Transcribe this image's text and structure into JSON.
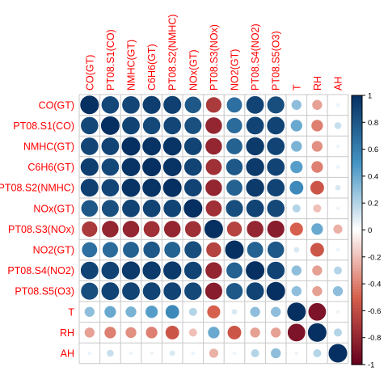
{
  "chart_data": {
    "type": "heatmap",
    "title": "",
    "variables": [
      "CO(GT)",
      "PT08.S1(CO)",
      "NMHC(GT)",
      "C6H6(GT)",
      "PT08.S2(NMHC)",
      "NOx(GT)",
      "PT08.S3(NOx)",
      "NO2(GT)",
      "PT08.S4(NO2)",
      "PT08.S5(O3)",
      "T",
      "RH",
      "AH"
    ],
    "matrix": [
      [
        1.0,
        0.88,
        0.89,
        0.93,
        0.92,
        0.8,
        -0.7,
        0.68,
        0.9,
        0.85,
        0.3,
        -0.3,
        0.05
      ],
      [
        0.88,
        1.0,
        0.9,
        0.88,
        0.89,
        0.84,
        -0.8,
        0.7,
        0.9,
        0.9,
        0.4,
        -0.4,
        0.15
      ],
      [
        0.89,
        0.9,
        1.0,
        0.98,
        0.98,
        0.9,
        -0.8,
        0.75,
        0.95,
        0.9,
        0.35,
        -0.35,
        0.05
      ],
      [
        0.93,
        0.88,
        0.98,
        1.0,
        0.98,
        0.9,
        -0.75,
        0.8,
        0.95,
        0.9,
        0.45,
        -0.4,
        0.05
      ],
      [
        0.92,
        0.89,
        0.98,
        0.98,
        1.0,
        0.9,
        -0.8,
        0.75,
        0.95,
        0.9,
        0.55,
        -0.55,
        0.1
      ],
      [
        0.8,
        0.84,
        0.9,
        0.9,
        0.9,
        1.0,
        -0.75,
        0.85,
        0.9,
        0.88,
        0.2,
        -0.2,
        0.05
      ],
      [
        -0.7,
        -0.8,
        -0.8,
        -0.75,
        -0.8,
        -0.75,
        1.0,
        -0.65,
        -0.8,
        -0.85,
        -0.5,
        0.4,
        -0.25
      ],
      [
        0.68,
        0.7,
        0.75,
        0.8,
        0.75,
        0.85,
        -0.65,
        1.0,
        0.75,
        0.8,
        0.1,
        -0.55,
        0.05
      ],
      [
        0.9,
        0.9,
        0.95,
        0.95,
        0.95,
        0.9,
        -0.8,
        0.75,
        1.0,
        0.9,
        0.3,
        -0.3,
        0.2
      ],
      [
        0.85,
        0.9,
        0.9,
        0.9,
        0.9,
        0.88,
        -0.85,
        0.8,
        0.9,
        1.0,
        0.3,
        -0.3,
        0.3
      ],
      [
        0.3,
        0.4,
        0.35,
        0.45,
        0.55,
        0.2,
        -0.5,
        0.1,
        0.3,
        0.3,
        1.0,
        -0.9,
        0.05
      ],
      [
        -0.3,
        -0.4,
        -0.35,
        -0.4,
        -0.55,
        -0.2,
        0.4,
        -0.55,
        -0.3,
        -0.3,
        -0.9,
        1.0,
        0.2
      ],
      [
        0.05,
        0.15,
        0.05,
        0.05,
        0.1,
        0.05,
        -0.25,
        0.05,
        0.2,
        0.3,
        0.05,
        0.2,
        1.0
      ]
    ],
    "value_range": [
      -1,
      1
    ],
    "legend": {
      "placement": "right",
      "ticks": [
        1,
        0.8,
        0.6,
        0.4,
        0.2,
        0,
        -0.2,
        -0.4,
        -0.6,
        -0.8,
        -1
      ],
      "tick_labels": [
        "1",
        "0.8",
        "0.6",
        "0.4",
        "0.2",
        "0",
        "-0.2",
        "-0.4",
        "-0.6",
        "-0.8",
        "-1"
      ]
    },
    "colors": {
      "negative_end": "#67001f",
      "negative_mid": "#d6604d",
      "neutral": "#ffffff",
      "positive_mid": "#4393c3",
      "positive_end": "#053061",
      "label_text": "#ff0000",
      "grid": "#c8c8c8"
    },
    "grid": true
  }
}
